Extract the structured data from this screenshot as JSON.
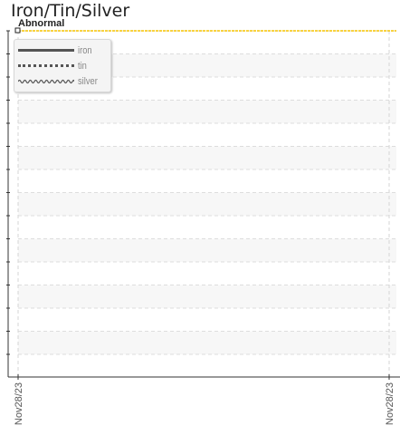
{
  "chart_data": {
    "type": "line",
    "title": "Iron/Tin/Silver",
    "x_tick_labels": [
      "Nov28/23",
      "Nov28/23"
    ],
    "series": [
      {
        "name": "iron",
        "style": "solid",
        "color": "#555555"
      },
      {
        "name": "tin",
        "style": "dotted",
        "color": "#555555"
      },
      {
        "name": "silver",
        "style": "wavy",
        "color": "#555555"
      }
    ],
    "threshold": {
      "label": "Abnormal",
      "color": "#f5c400"
    },
    "grid": true,
    "legend_position": "top-left"
  }
}
